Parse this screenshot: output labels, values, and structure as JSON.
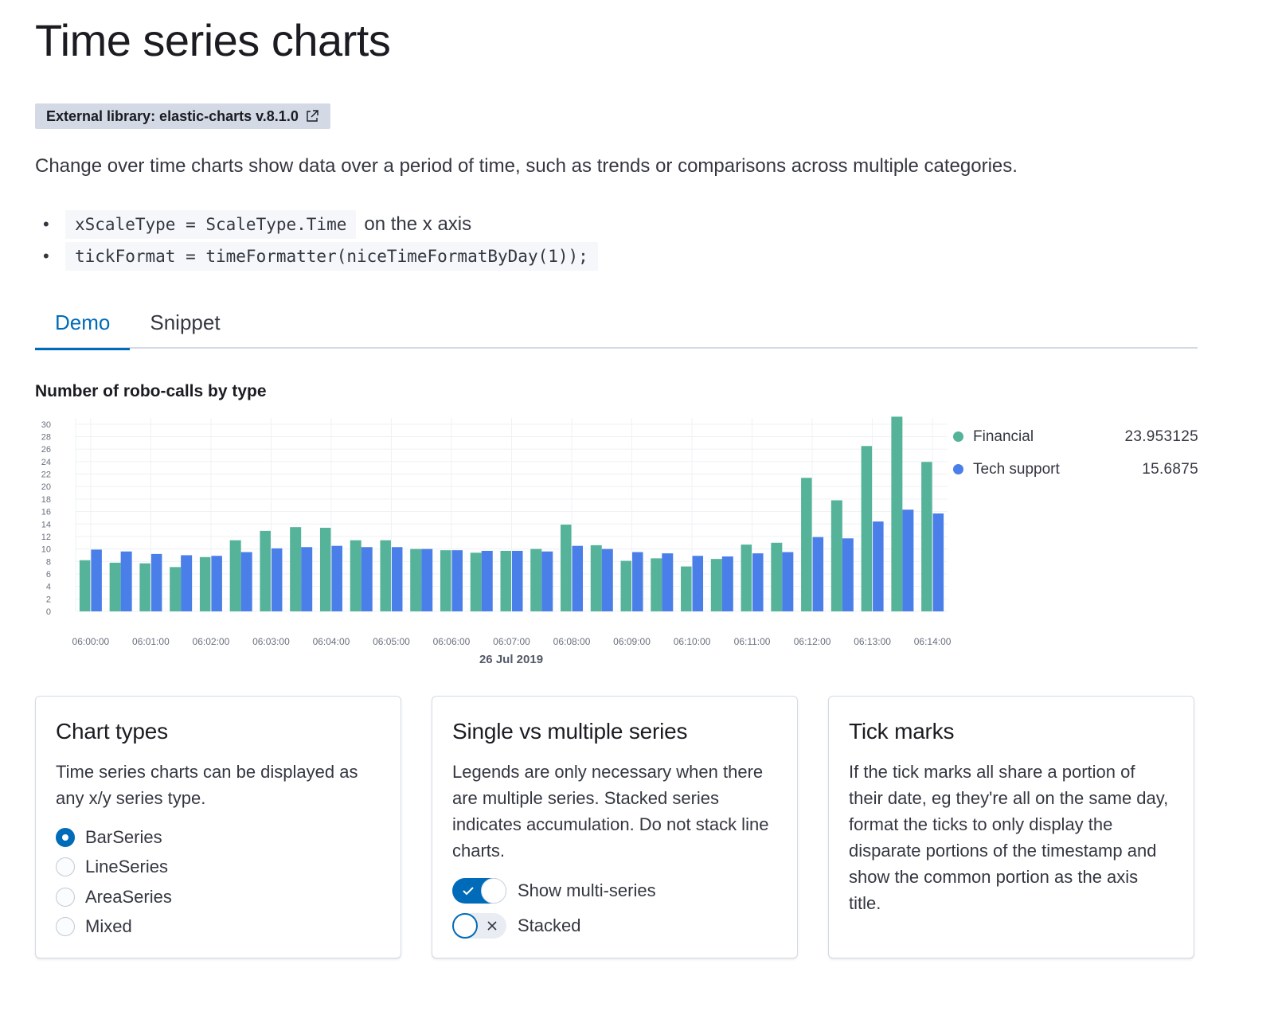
{
  "page": {
    "title": "Time series charts",
    "badge": "External library: elastic-charts v.8.1.0",
    "lead": "Change over time charts show data over a period of time, such as trends or comparisons across multiple categories.",
    "bullets": [
      {
        "code": "xScaleType = ScaleType.Time",
        "text": "on the x axis"
      },
      {
        "code": "tickFormat = timeFormatter(niceTimeFormatByDay(1));",
        "text": ""
      }
    ]
  },
  "tabs": [
    {
      "label": "Demo",
      "active": true
    },
    {
      "label": "Snippet",
      "active": false
    }
  ],
  "colors": {
    "accent": "#006bb8",
    "financial": "#54b399",
    "tech_support": "#4a7ee8"
  },
  "chart_data": {
    "type": "bar",
    "title": "Number of robo-calls by type",
    "xlabel": "26 Jul 2019",
    "ylabel": "",
    "ylim": [
      0,
      31
    ],
    "yticks": [
      0,
      2,
      4,
      6,
      8,
      10,
      12,
      14,
      16,
      18,
      20,
      22,
      24,
      26,
      28,
      30
    ],
    "grid": true,
    "legend_position": "right",
    "x_tick_labels": [
      "06:00:00",
      "06:01:00",
      "06:02:00",
      "06:03:00",
      "06:04:00",
      "06:05:00",
      "06:06:00",
      "06:07:00",
      "06:08:00",
      "06:09:00",
      "06:10:00",
      "06:11:00",
      "06:12:00",
      "06:13:00",
      "06:14:00"
    ],
    "categories": [
      "06:00:00",
      "06:00:30",
      "06:01:00",
      "06:01:30",
      "06:02:00",
      "06:02:30",
      "06:03:00",
      "06:03:30",
      "06:04:00",
      "06:04:30",
      "06:05:00",
      "06:05:30",
      "06:06:00",
      "06:06:30",
      "06:07:00",
      "06:07:30",
      "06:08:00",
      "06:08:30",
      "06:09:00",
      "06:09:30",
      "06:10:00",
      "06:10:30",
      "06:11:00",
      "06:11:30",
      "06:12:00",
      "06:12:30",
      "06:13:00",
      "06:13:30",
      "06:14:00"
    ],
    "series": [
      {
        "name": "Financial",
        "values": [
          8.2,
          7.8,
          7.7,
          7.1,
          8.7,
          11.4,
          12.9,
          13.5,
          13.4,
          11.4,
          11.4,
          10.0,
          9.8,
          9.4,
          9.7,
          10.0,
          13.9,
          10.6,
          8.1,
          8.5,
          7.2,
          8.4,
          10.7,
          11.0,
          21.4,
          17.8,
          26.5,
          31.2,
          23.95
        ]
      },
      {
        "name": "Tech support",
        "values": [
          9.9,
          9.6,
          9.2,
          9.0,
          8.9,
          9.5,
          10.1,
          10.3,
          10.5,
          10.3,
          10.3,
          10.0,
          9.8,
          9.7,
          9.7,
          9.6,
          10.5,
          10.0,
          9.5,
          9.3,
          8.9,
          8.8,
          9.3,
          9.5,
          11.9,
          11.7,
          14.4,
          16.3,
          15.69
        ]
      }
    ]
  },
  "legend": [
    {
      "name": "Financial",
      "value": "23.953125",
      "color": "#54b399"
    },
    {
      "name": "Tech support",
      "value": "15.6875",
      "color": "#4a7ee8"
    }
  ],
  "panels": {
    "chart_types": {
      "title": "Chart types",
      "description": "Time series charts can be displayed as any x/y series type.",
      "options": [
        {
          "label": "BarSeries",
          "checked": true
        },
        {
          "label": "LineSeries",
          "checked": false
        },
        {
          "label": "AreaSeries",
          "checked": false
        },
        {
          "label": "Mixed",
          "checked": false
        }
      ]
    },
    "series": {
      "title": "Single vs multiple series",
      "description": "Legends are only necessary when there are multiple series. Stacked series indicates accumulation. Do not stack line charts.",
      "switches": [
        {
          "label": "Show multi-series",
          "on": true
        },
        {
          "label": "Stacked",
          "on": false
        }
      ]
    },
    "ticks": {
      "title": "Tick marks",
      "description": "If the tick marks all share a portion of their date, eg they're all on the same day, format the ticks to only display the disparate portions of the timestamp and show the common portion as the axis title."
    }
  }
}
